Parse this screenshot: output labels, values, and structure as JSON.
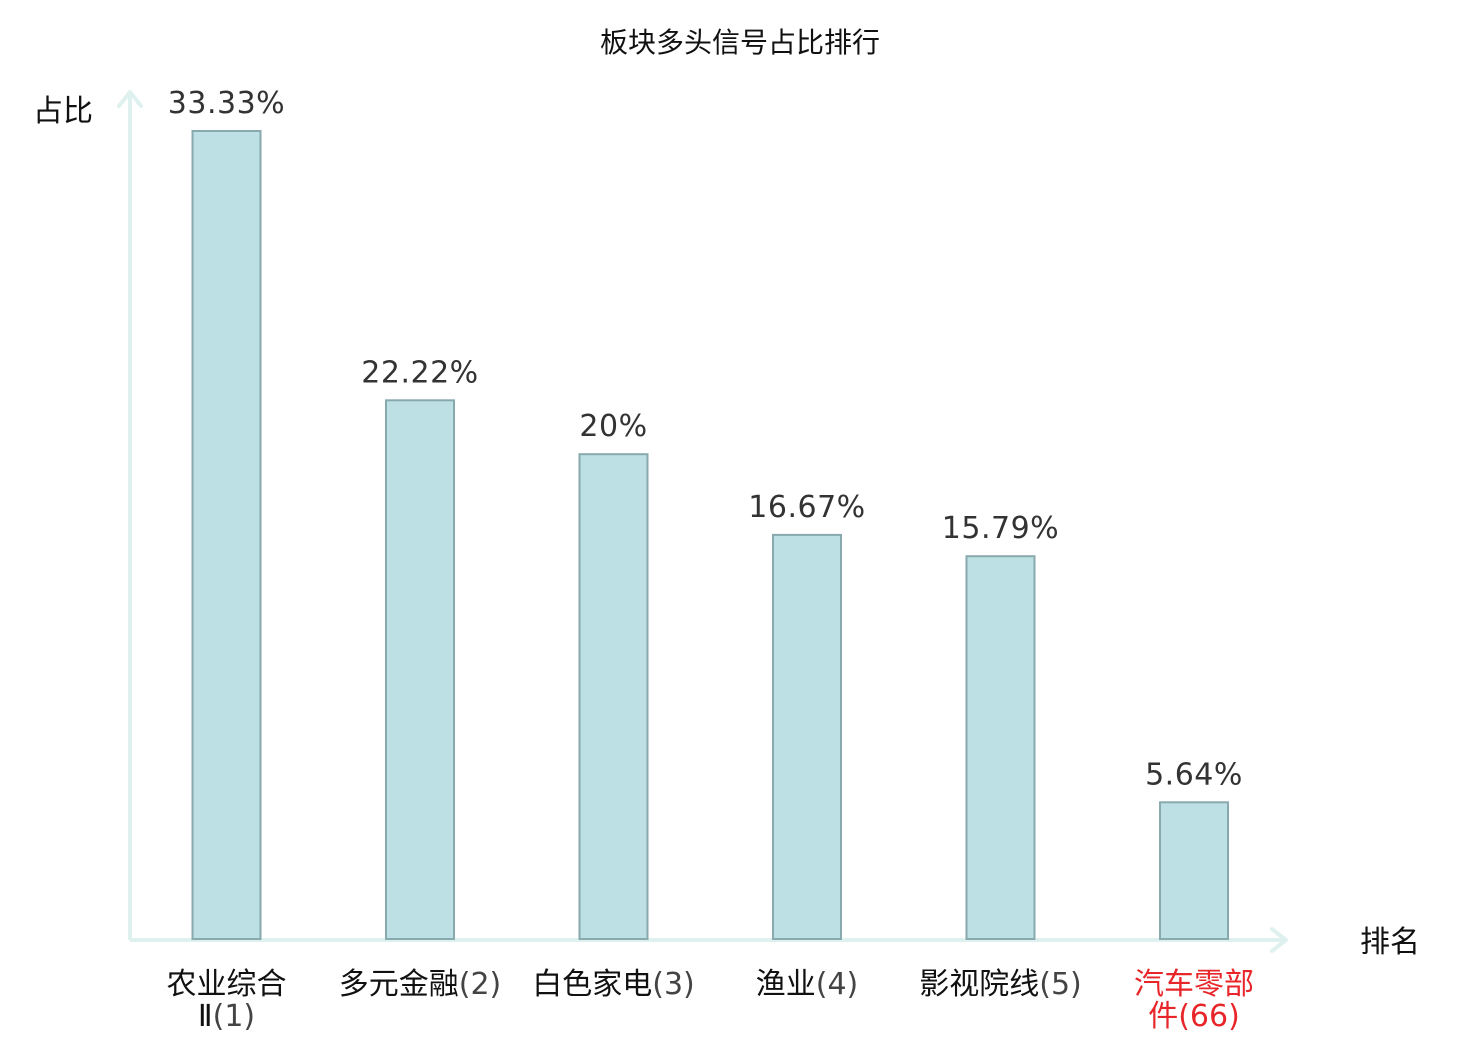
{
  "chart_data": {
    "type": "bar",
    "title": "板块多头信号占比排行",
    "ylabel": "占比",
    "xlabel": "排名",
    "categories": [
      {
        "name": "农业综合Ⅱ",
        "rank": "(1)",
        "highlight": false
      },
      {
        "name": "多元金融",
        "rank": "(2)",
        "highlight": false
      },
      {
        "name": "白色家电",
        "rank": "(3)",
        "highlight": false
      },
      {
        "name": "渔业",
        "rank": "(4)",
        "highlight": false
      },
      {
        "name": "影视院线",
        "rank": "(5)",
        "highlight": false
      },
      {
        "name": "汽车零部件",
        "rank": "(66)",
        "highlight": true
      }
    ],
    "values": [
      33.33,
      22.22,
      20,
      16.67,
      15.79,
      5.64
    ],
    "value_labels": [
      "33.33%",
      "22.22%",
      "20%",
      "16.67%",
      "15.79%",
      "5.64%"
    ],
    "ylim": [
      0,
      35
    ],
    "grid": false,
    "legend": "none"
  },
  "colors": {
    "bar_fill": "#bce0e3",
    "bar_stroke": "#88a9ad",
    "axis": "#dff1ef",
    "text": "#111111",
    "value_text": "#333333",
    "rank_text": "#444444",
    "highlight": "#e8262a"
  }
}
